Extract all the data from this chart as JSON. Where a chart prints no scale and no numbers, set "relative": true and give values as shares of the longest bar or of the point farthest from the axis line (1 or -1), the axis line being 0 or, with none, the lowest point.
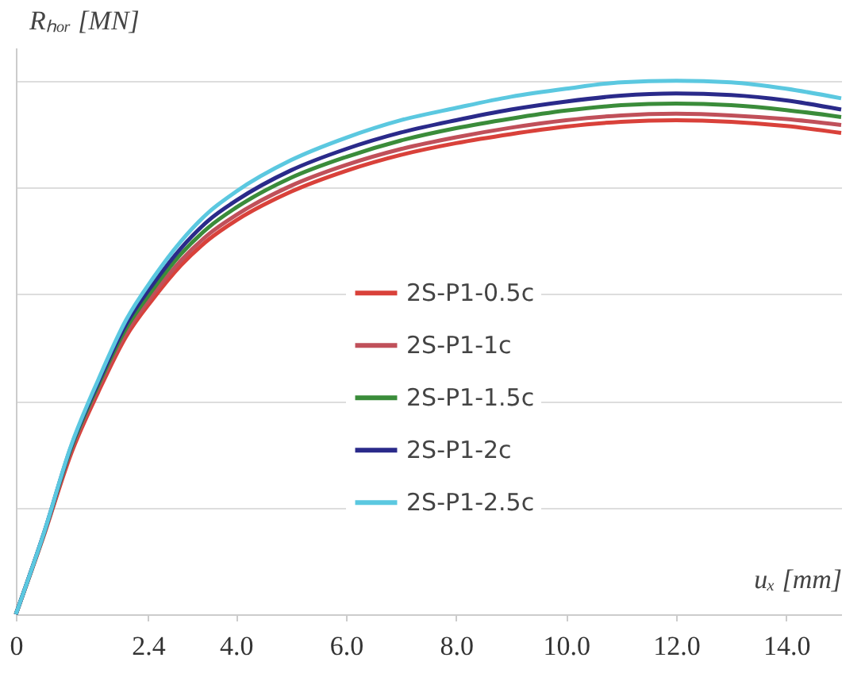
{
  "chart_data": {
    "type": "line",
    "relative": true,
    "xlabel": "uₓ [mm]",
    "ylabel": "Rₕₒᵣ [MN]",
    "x": [
      0,
      0.5,
      1,
      1.5,
      2,
      2.5,
      3,
      3.5,
      4,
      5,
      6,
      7,
      8,
      9,
      10,
      11,
      12,
      13,
      14,
      15
    ],
    "xlim": [
      0,
      15
    ],
    "xticks": [
      0,
      2.4,
      {
        "value": 4,
        "label": "4.0"
      },
      {
        "value": 6,
        "label": "6.0"
      },
      {
        "value": 8,
        "label": "8.0"
      },
      {
        "value": 10,
        "label": "10.0"
      },
      {
        "value": 12,
        "label": "12.0"
      },
      {
        "value": 14,
        "label": "14.0"
      }
    ],
    "series": [
      {
        "name": "2S-P1-0.5c",
        "color": "#d9413a",
        "values": [
          0,
          0.145,
          0.3,
          0.417,
          0.52,
          0.592,
          0.654,
          0.702,
          0.738,
          0.792,
          0.831,
          0.861,
          0.883,
          0.9,
          0.914,
          0.923,
          0.926,
          0.923,
          0.915,
          0.902
        ]
      },
      {
        "name": "2S-P1-1c",
        "color": "#c0505a",
        "values": [
          0,
          0.147,
          0.305,
          0.424,
          0.527,
          0.6,
          0.663,
          0.712,
          0.748,
          0.803,
          0.842,
          0.872,
          0.894,
          0.912,
          0.926,
          0.935,
          0.938,
          0.935,
          0.928,
          0.917
        ]
      },
      {
        "name": "2S-P1-1.5c",
        "color": "#3a8c3a",
        "values": [
          0,
          0.148,
          0.31,
          0.43,
          0.535,
          0.61,
          0.675,
          0.725,
          0.762,
          0.818,
          0.857,
          0.888,
          0.911,
          0.929,
          0.944,
          0.954,
          0.957,
          0.954,
          0.945,
          0.932
        ]
      },
      {
        "name": "2S-P1-2c",
        "color": "#2a2a8a",
        "values": [
          0,
          0.149,
          0.313,
          0.435,
          0.543,
          0.62,
          0.686,
          0.738,
          0.775,
          0.832,
          0.872,
          0.903,
          0.926,
          0.946,
          0.961,
          0.972,
          0.976,
          0.973,
          0.963,
          0.946
        ]
      },
      {
        "name": "2S-P1-2.5c",
        "color": "#5bc8e0",
        "values": [
          0,
          0.149,
          0.315,
          0.44,
          0.551,
          0.631,
          0.699,
          0.753,
          0.792,
          0.851,
          0.893,
          0.926,
          0.949,
          0.97,
          0.985,
          0.997,
          1,
          0.997,
          0.985,
          0.967
        ]
      }
    ],
    "grid": "y",
    "legend": "center",
    "marker": "none",
    "line_style": "solid"
  }
}
